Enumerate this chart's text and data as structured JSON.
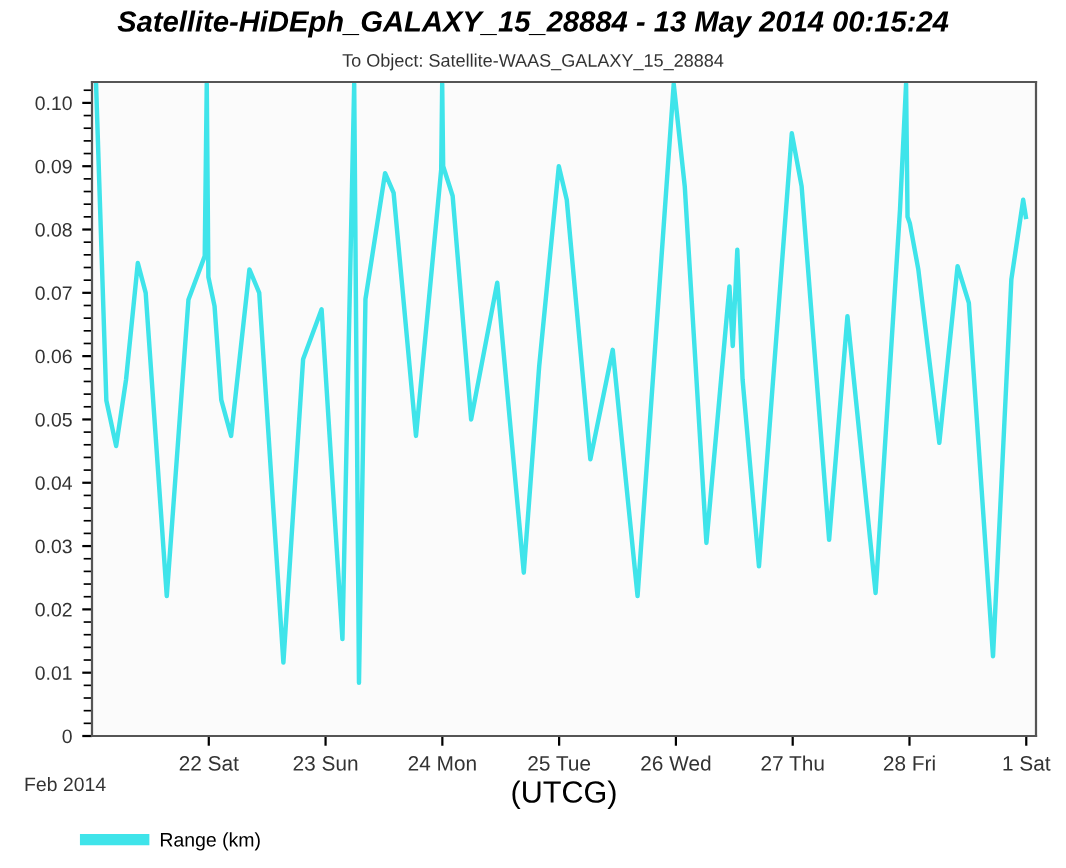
{
  "chart_data": {
    "type": "line",
    "title": "Satellite-HiDEph_GALAXY_15_28884 - 13 May 2014 00:15:24",
    "subtitle": "To Object: Satellite-WAAS_GALAXY_15_28884",
    "xlabel": "(UTCG)",
    "annotations": [
      "Feb 2014"
    ],
    "series": [
      {
        "name": "Range (km)",
        "color": "#3fe4ea",
        "x": [
          "2014-02-21T00:50",
          "2014-02-21T02:57",
          "2014-02-21T04:58",
          "2014-02-21T07:00",
          "2014-02-21T09:25",
          "2014-02-21T11:02",
          "2014-02-21T15:22",
          "2014-02-21T19:49",
          "2014-02-21T23:10",
          "2014-02-21T23:35",
          "2014-02-21T23:55",
          "2014-02-22T01:11",
          "2014-02-22T02:34",
          "2014-02-22T04:35",
          "2014-02-22T08:21",
          "2014-02-22T10:22",
          "2014-02-22T15:20",
          "2014-02-22T19:23",
          "2014-02-22T23:11",
          "2014-02-23T03:28",
          "2014-02-23T05:53",
          "2014-02-23T06:52",
          "2014-02-23T08:12",
          "2014-02-23T12:14",
          "2014-02-23T13:59",
          "2014-02-23T18:35",
          "2014-02-23T23:46",
          "2014-02-23T23:58",
          "2014-02-24T00:10",
          "2014-02-24T02:07",
          "2014-02-24T05:55",
          "2014-02-24T11:17",
          "2014-02-24T16:44",
          "2014-02-24T19:54",
          "2014-02-24T23:56",
          "2014-02-25T01:34",
          "2014-02-25T06:25",
          "2014-02-25T11:01",
          "2014-02-25T16:07",
          "2014-02-25T23:33",
          "2014-02-26T01:49",
          "2014-02-26T06:16",
          "2014-02-26T11:00",
          "2014-02-26T11:41",
          "2014-02-26T12:37",
          "2014-02-26T13:42",
          "2014-02-26T17:04",
          "2014-02-26T23:49",
          "2014-02-27T01:50",
          "2014-02-27T07:29",
          "2014-02-27T11:15",
          "2014-02-27T17:02",
          "2014-02-27T22:03",
          "2014-02-27T23:18",
          "2014-02-27T23:36",
          "2014-02-28T00:04",
          "2014-02-28T01:49",
          "2014-02-28T06:08",
          "2014-02-28T09:53",
          "2014-02-28T12:12",
          "2014-02-28T17:10",
          "2014-02-28T20:56",
          "2014-02-28T23:22",
          "2014-02-28T23:55"
        ],
        "values": [
          0.103,
          0.053,
          0.0458,
          0.0563,
          0.0747,
          0.07,
          0.0221,
          0.0689,
          0.0758,
          0.103,
          0.0725,
          0.0679,
          0.0531,
          0.0474,
          0.0737,
          0.07,
          0.0116,
          0.0595,
          0.0674,
          0.0153,
          0.103,
          0.0084,
          0.069,
          0.0889,
          0.0858,
          0.0474,
          0.0895,
          0.103,
          0.09,
          0.0853,
          0.05,
          0.0716,
          0.0258,
          0.0584,
          0.09,
          0.0847,
          0.0437,
          0.061,
          0.0221,
          0.103,
          0.0868,
          0.0305,
          0.071,
          0.0616,
          0.0768,
          0.0563,
          0.0268,
          0.0952,
          0.0868,
          0.031,
          0.0663,
          0.0226,
          0.0831,
          0.103,
          0.082,
          0.081,
          0.0737,
          0.0463,
          0.0742,
          0.0684,
          0.0126,
          0.0721,
          0.0847,
          0.082
        ]
      }
    ],
    "xlim": [
      "2014-02-21T00:00",
      "2014-03-01T02:00"
    ],
    "xticks": [
      {
        "value": "2014-02-22",
        "label": "22 Sat"
      },
      {
        "value": "2014-02-23",
        "label": "23 Sun"
      },
      {
        "value": "2014-02-24",
        "label": "24 Mon"
      },
      {
        "value": "2014-02-25",
        "label": "25 Tue"
      },
      {
        "value": "2014-02-26",
        "label": "26 Wed"
      },
      {
        "value": "2014-02-27",
        "label": "27 Thu"
      },
      {
        "value": "2014-02-28",
        "label": "28 Fri"
      },
      {
        "value": "2014-03-01",
        "label": "1 Sat"
      }
    ],
    "ylim": [
      0,
      0.1033
    ],
    "yticks": [
      0,
      {
        "value": 0.01,
        "label": "0.01"
      },
      {
        "value": 0.02,
        "label": "0.02"
      },
      {
        "value": 0.03,
        "label": "0.03"
      },
      {
        "value": 0.04,
        "label": "0.04"
      },
      {
        "value": 0.05,
        "label": "0.05"
      },
      {
        "value": 0.06,
        "label": "0.06"
      },
      {
        "value": 0.07,
        "label": "0.07"
      },
      {
        "value": 0.08,
        "label": "0.08"
      },
      {
        "value": 0.09,
        "label": "0.09"
      },
      {
        "value": 0.1,
        "label": "0.10"
      }
    ],
    "legend": "bottom left",
    "grid": false,
    "marker": "none",
    "line_style": "solid"
  }
}
